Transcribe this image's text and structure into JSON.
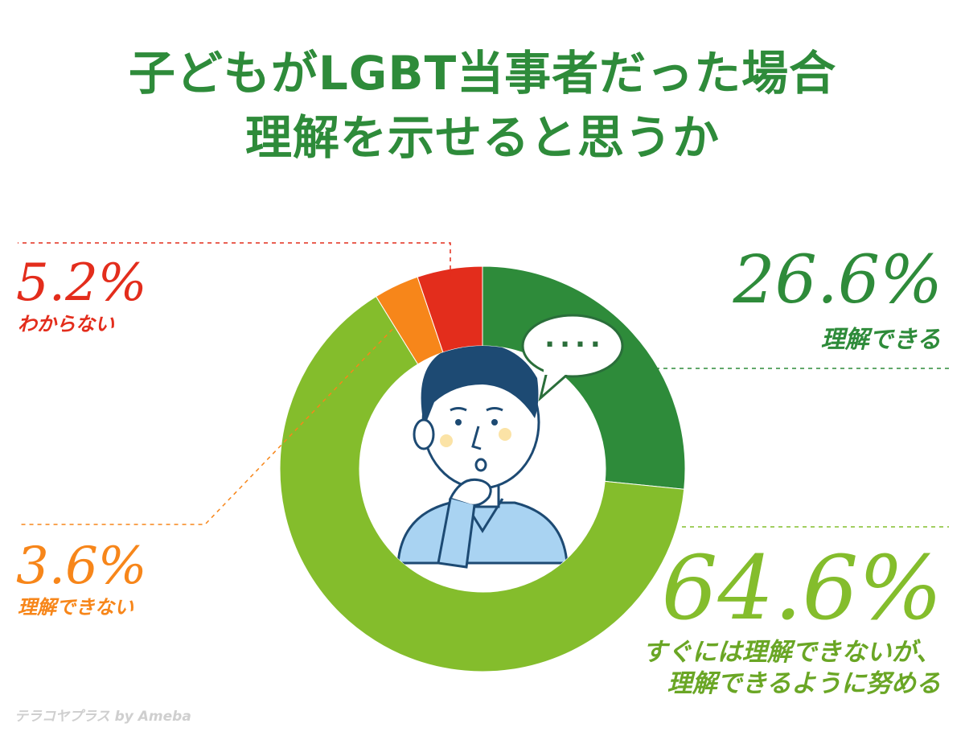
{
  "title": {
    "line1": "子どもがLGBT当事者だった場合",
    "line2": "理解を示せると思うか"
  },
  "bubble_text": "....",
  "watermark": "テラコヤプラス by Ameba",
  "chart_data": {
    "type": "pie",
    "title": "子どもがLGBT当事者だった場合 理解を示せると思うか",
    "slices": [
      {
        "label": "理解できる",
        "label_line2": "",
        "value": 26.6,
        "display": "26.6%",
        "color": "#2e8b3a"
      },
      {
        "label": "すぐには理解できないが、",
        "label_line2": "理解できるように努める",
        "value": 64.6,
        "display": "64.6%",
        "color": "#84bd2c"
      },
      {
        "label": "理解できない",
        "label_line2": "",
        "value": 3.6,
        "display": "3.6%",
        "color": "#f7861a"
      },
      {
        "label": "わからない",
        "label_line2": "",
        "value": 5.2,
        "display": "5.2%",
        "color": "#e32d1c"
      }
    ]
  }
}
